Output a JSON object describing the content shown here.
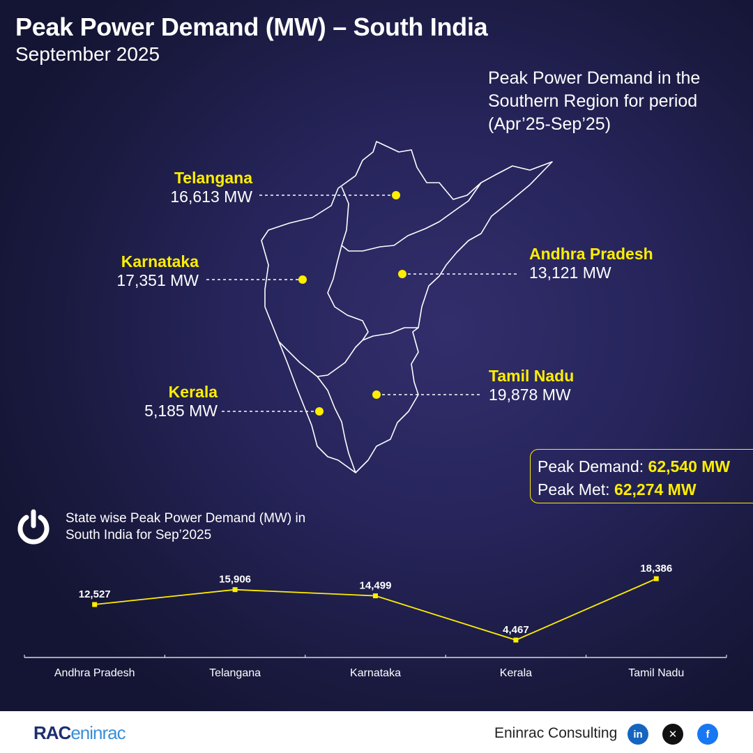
{
  "header": {
    "title": "Peak Power Demand (MW) – South India",
    "subtitle": "September 2025"
  },
  "note": "Peak Power Demand in the Southern Region for period (Apr’25-Sep’25)",
  "map_labels": {
    "telangana": {
      "name": "Telangana",
      "value": "16,613 MW"
    },
    "karnataka": {
      "name": "Karnataka",
      "value": "17,351 MW"
    },
    "andhra": {
      "name": "Andhra Pradesh",
      "value": "13,121 MW"
    },
    "tamil": {
      "name": "Tamil Nadu",
      "value": "19,878 MW"
    },
    "kerala": {
      "name": "Kerala",
      "value": "5,185 MW"
    }
  },
  "peak_box": {
    "demand_label": "Peak Demand: ",
    "demand_value": "62,540 MW",
    "met_label": "Peak Met: ",
    "met_value": "62,274 MW"
  },
  "line_chart_title": "State wise Peak Power Demand (MW) in South India for Sep’2025",
  "chart_data": {
    "type": "line",
    "categories": [
      "Andhra Pradesh",
      "Telangana",
      "Karnataka",
      "Kerala",
      "Tamil Nadu"
    ],
    "series": [
      {
        "values": [
          12527,
          15906,
          14499,
          4467,
          18386
        ]
      }
    ],
    "data_labels": [
      "12,527",
      "15,906",
      "14,499",
      "4,467",
      "18,386"
    ],
    "ylim": [
      0,
      20000
    ],
    "grid": false,
    "color": "#ffee00"
  },
  "footer": {
    "logo_main": "RAC",
    "logo_sub": "eninrac",
    "brand": "Eninrac Consulting"
  },
  "icons": [
    "power-icon",
    "linkedin-icon",
    "x-icon",
    "facebook-icon"
  ],
  "colors": {
    "accent": "#ffee00",
    "background": "#26245a",
    "linkedin": "#1565c0",
    "x": "#111111",
    "facebook": "#1877f2"
  }
}
